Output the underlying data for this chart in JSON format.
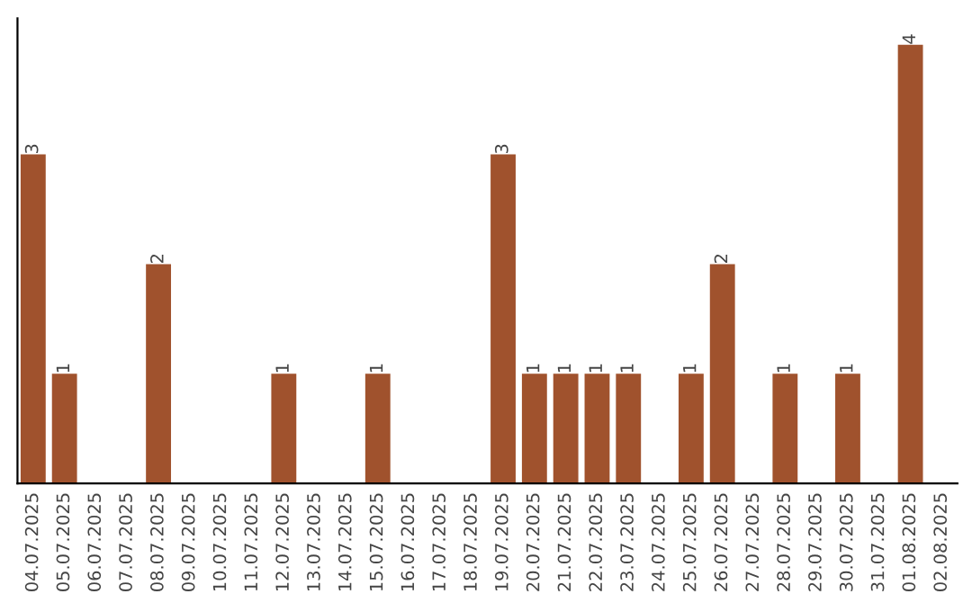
{
  "chart_data": {
    "type": "bar",
    "categories": [
      "04.07.2025",
      "05.07.2025",
      "06.07.2025",
      "07.07.2025",
      "08.07.2025",
      "09.07.2025",
      "10.07.2025",
      "11.07.2025",
      "12.07.2025",
      "13.07.2025",
      "14.07.2025",
      "15.07.2025",
      "16.07.2025",
      "17.07.2025",
      "18.07.2025",
      "19.07.2025",
      "20.07.2025",
      "21.07.2025",
      "22.07.2025",
      "23.07.2025",
      "24.07.2025",
      "25.07.2025",
      "26.07.2025",
      "27.07.2025",
      "28.07.2025",
      "29.07.2025",
      "30.07.2025",
      "31.07.2025",
      "01.08.2025",
      "02.08.2025"
    ],
    "values": [
      3,
      1,
      0,
      0,
      2,
      0,
      0,
      0,
      1,
      0,
      0,
      1,
      0,
      0,
      0,
      3,
      1,
      1,
      1,
      1,
      0,
      1,
      2,
      0,
      1,
      0,
      1,
      0,
      4,
      0
    ],
    "value_labels": [
      "3",
      "1",
      null,
      null,
      "2",
      null,
      null,
      null,
      "1",
      null,
      null,
      "1",
      null,
      null,
      null,
      "3",
      "1",
      "1",
      "1",
      "1",
      null,
      "1",
      "2",
      null,
      "1",
      null,
      "1",
      null,
      "4",
      null
    ],
    "color": "#a0522d",
    "tick_labels": "x",
    "grid": false,
    "legend": false
  }
}
